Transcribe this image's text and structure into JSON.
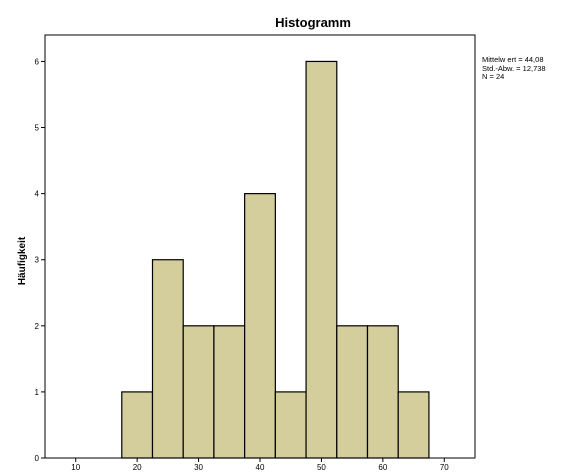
{
  "chart_data": {
    "type": "bar",
    "title": "Histogramm",
    "xlabel": "",
    "ylabel": "Häufigkeit",
    "bins": [
      {
        "x0": 17.5,
        "x1": 22.5,
        "count": 1
      },
      {
        "x0": 22.5,
        "x1": 27.5,
        "count": 3
      },
      {
        "x0": 27.5,
        "x1": 32.5,
        "count": 2
      },
      {
        "x0": 32.5,
        "x1": 37.5,
        "count": 2
      },
      {
        "x0": 37.5,
        "x1": 42.5,
        "count": 4
      },
      {
        "x0": 42.5,
        "x1": 47.5,
        "count": 1
      },
      {
        "x0": 47.5,
        "x1": 52.5,
        "count": 6
      },
      {
        "x0": 52.5,
        "x1": 57.5,
        "count": 2
      },
      {
        "x0": 57.5,
        "x1": 62.5,
        "count": 2
      },
      {
        "x0": 62.5,
        "x1": 67.5,
        "count": 1
      }
    ],
    "xticks": [
      10,
      20,
      30,
      40,
      50,
      60,
      70
    ],
    "yticks": [
      0,
      1,
      2,
      3,
      4,
      5,
      6
    ],
    "xlim": [
      5,
      75
    ],
    "ylim": [
      0,
      6.4
    ],
    "grid": false,
    "bar_color": "#d3ce9b",
    "bar_edge_color": "#000000"
  },
  "stats": {
    "mean": "Mittelw ert = 44,08",
    "std": "Std.-Abw. = 12,738",
    "n": "N = 24"
  }
}
